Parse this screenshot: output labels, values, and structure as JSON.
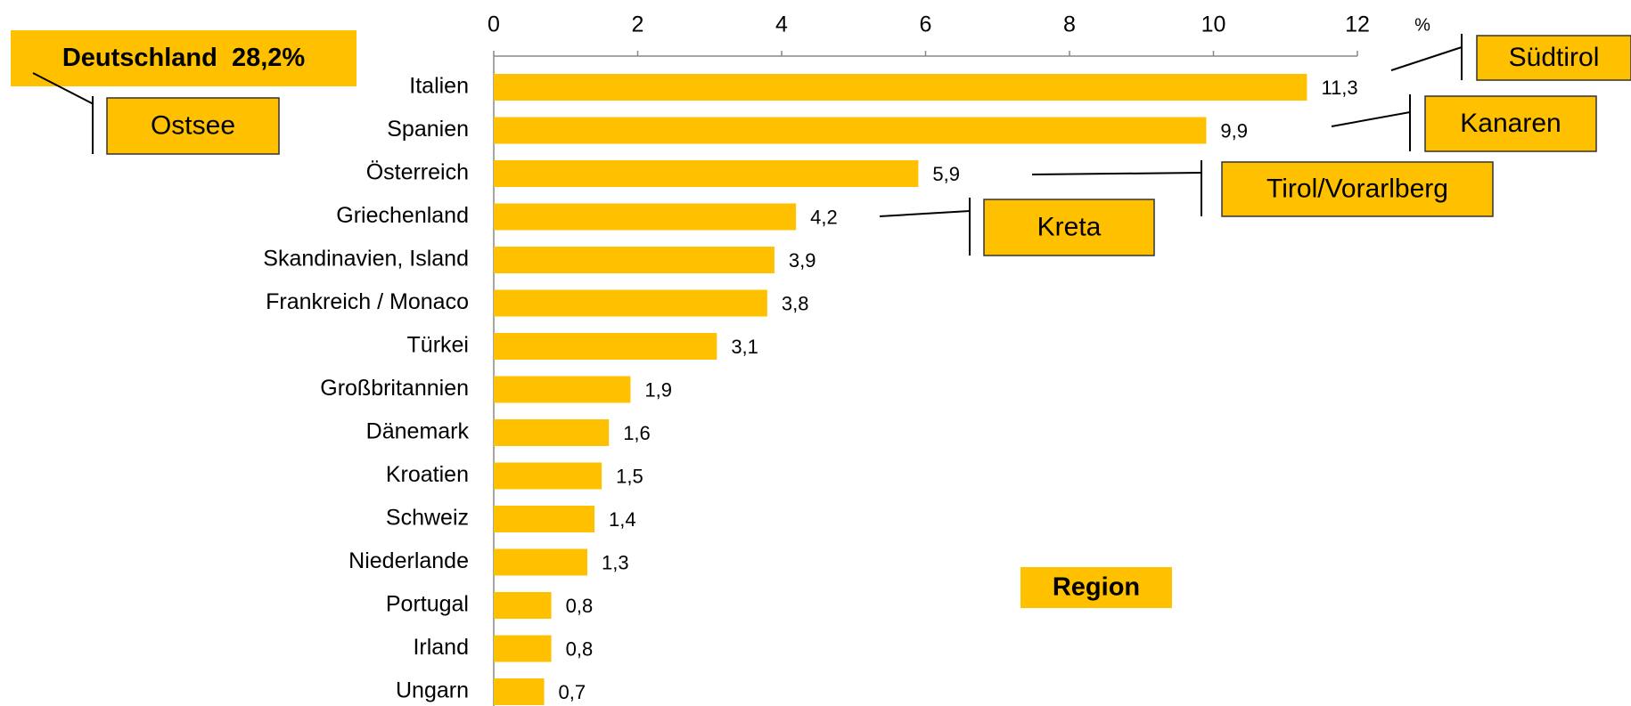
{
  "chart_data": {
    "type": "bar",
    "orientation": "horizontal",
    "categories": [
      "Italien",
      "Spanien",
      "Österreich",
      "Griechenland",
      "Skandinavien, Island",
      "Frankreich / Monaco",
      "Türkei",
      "Großbritannien",
      "Dänemark",
      "Kroatien",
      "Schweiz",
      "Niederlande",
      "Portugal",
      "Irland",
      "Ungarn"
    ],
    "values": [
      11.3,
      9.9,
      5.9,
      4.2,
      3.9,
      3.8,
      3.1,
      1.9,
      1.6,
      1.5,
      1.4,
      1.3,
      0.8,
      0.8,
      0.7
    ],
    "value_labels": [
      "11,3",
      "9,9",
      "5,9",
      "4,2",
      "3,9",
      "3,8",
      "3,1",
      "1,9",
      "1,6",
      "1,5",
      "1,4",
      "1,3",
      "0,8",
      "0,8",
      "0,7"
    ],
    "color": "#FFC000",
    "xlim": [
      0,
      12
    ],
    "xticks": [
      0,
      2,
      4,
      6,
      8,
      10,
      12
    ],
    "x_unit": "%",
    "annotations": [
      "Deutschland  28,2%",
      "Ostsee",
      "Südtirol",
      "Kanaren",
      "Tirol/Vorarlberg",
      "Kreta",
      "Region"
    ]
  }
}
